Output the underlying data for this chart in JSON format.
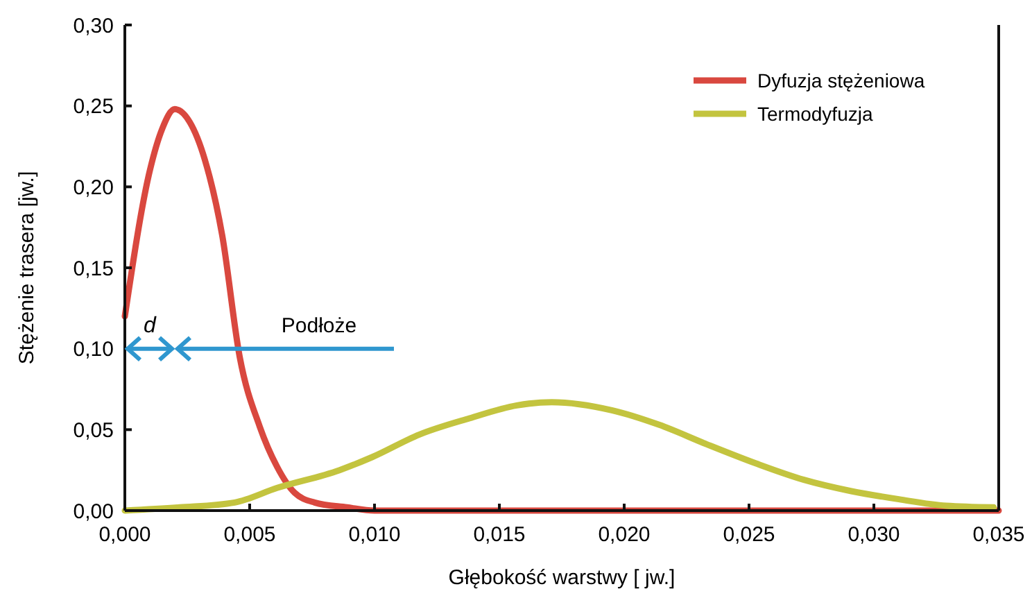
{
  "chart_data": {
    "type": "line",
    "xlabel": "Głębokość warstwy [ jw.]",
    "ylabel": "Stężenie trasera  [jw.]",
    "xlim": [
      0,
      0.035
    ],
    "ylim": [
      0,
      0.3
    ],
    "xticks": [
      {
        "value": 0,
        "label": "0,000"
      },
      {
        "value": 0.005,
        "label": "0,005"
      },
      {
        "value": 0.01,
        "label": "0,010"
      },
      {
        "value": 0.015,
        "label": "0,015"
      },
      {
        "value": 0.02,
        "label": "0,020"
      },
      {
        "value": 0.025,
        "label": "0,025"
      },
      {
        "value": 0.03,
        "label": "0,030"
      },
      {
        "value": 0.035,
        "label": "0,035"
      }
    ],
    "yticks": [
      {
        "value": 0,
        "label": "0,00"
      },
      {
        "value": 0.05,
        "label": "0,05"
      },
      {
        "value": 0.1,
        "label": "0,10"
      },
      {
        "value": 0.15,
        "label": "0,15"
      },
      {
        "value": 0.2,
        "label": "0,20"
      },
      {
        "value": 0.25,
        "label": "0,25"
      },
      {
        "value": 0.3,
        "label": "0,30"
      }
    ],
    "grid": false,
    "legend": "top right",
    "marker": "none",
    "line_style": "solid",
    "series": [
      {
        "name": "Dyfuzja stężeniowa",
        "color": "#d9483f",
        "x": [
          0,
          0.001,
          0.0015,
          0.002,
          0.0026,
          0.0032,
          0.0039,
          0.0046,
          0.0054,
          0.0061,
          0.0068,
          0.0076,
          0.0089,
          0.01,
          0.035
        ],
        "values": [
          0.12,
          0.21,
          0.236,
          0.248,
          0.24,
          0.217,
          0.17,
          0.095,
          0.052,
          0.027,
          0.011,
          0.005,
          0.002,
          0,
          0
        ]
      },
      {
        "name": "Termodyfuzja",
        "color": "#c3c43f",
        "x": [
          0,
          0.0022,
          0.0044,
          0.0061,
          0.0086,
          0.0099,
          0.0118,
          0.0138,
          0.0157,
          0.0171,
          0.0195,
          0.0214,
          0.0233,
          0.0253,
          0.0272,
          0.0291,
          0.031,
          0.0329,
          0.0348
        ],
        "values": [
          0,
          0.002,
          0.005,
          0.014,
          0.025,
          0.033,
          0.047,
          0.057,
          0.065,
          0.067,
          0.062,
          0.053,
          0.041,
          0.029,
          0.019,
          0.012,
          0.007,
          0.003,
          0.002
        ]
      }
    ],
    "annotations": [
      "d",
      "Podłoże"
    ]
  }
}
